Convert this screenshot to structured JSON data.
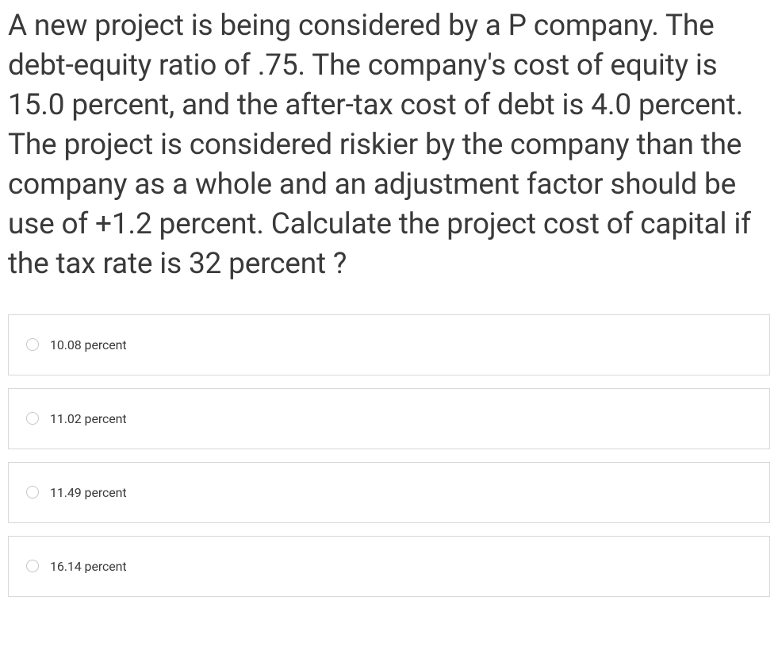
{
  "question": {
    "text": "A new project is being considered by a P company. The debt-equity ratio of .75. The company's cost of equity is 15.0 percent, and the after-tax cost of debt is 4.0 percent. The project is considered riskier by the company than the company as a whole and an adjustment factor should be use of +1.2 percent. Calculate the project cost of capital if the tax rate is 32 percent ?"
  },
  "options": [
    {
      "label": "10.08 percent"
    },
    {
      "label": "11.02 percent"
    },
    {
      "label": "11.49 percent"
    },
    {
      "label": "16.14 percent"
    }
  ],
  "style": {
    "question_fontsize": 37,
    "question_color": "#3a3a3a",
    "option_fontsize": 16,
    "option_border_color": "#d8d8d8",
    "radio_border_color": "#c7c7c7",
    "background_color": "#ffffff"
  }
}
